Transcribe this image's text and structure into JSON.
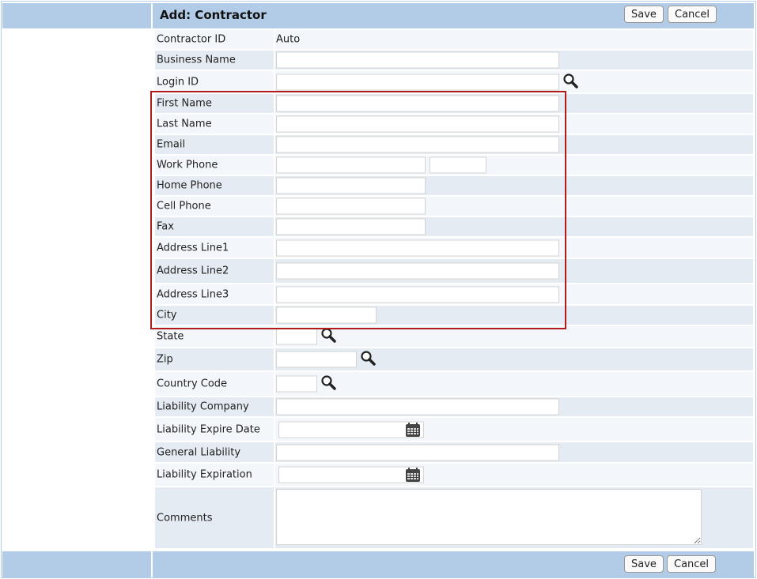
{
  "header": {
    "title": "Add: Contractor",
    "save_label": "Save",
    "cancel_label": "Cancel"
  },
  "footer": {
    "save_label": "Save",
    "cancel_label": "Cancel"
  },
  "fields": [
    {
      "label": "Contractor ID",
      "value": "Auto"
    },
    {
      "label": "Business Name",
      "value": ""
    },
    {
      "label": "Login ID",
      "value": ""
    },
    {
      "label": "First Name",
      "value": ""
    },
    {
      "label": "Last Name",
      "value": ""
    },
    {
      "label": "Email",
      "value": ""
    },
    {
      "label": "Work Phone",
      "value": "",
      "extension": ""
    },
    {
      "label": "Home Phone",
      "value": ""
    },
    {
      "label": "Cell Phone",
      "value": ""
    },
    {
      "label": "Fax",
      "value": ""
    },
    {
      "label": "Address Line1",
      "value": ""
    },
    {
      "label": "Address Line2",
      "value": ""
    },
    {
      "label": "Address Line3",
      "value": ""
    },
    {
      "label": "City",
      "value": ""
    },
    {
      "label": "State",
      "value": ""
    },
    {
      "label": "Zip",
      "value": ""
    },
    {
      "label": "Country Code",
      "value": ""
    },
    {
      "label": "Liability Company",
      "value": ""
    },
    {
      "label": "Liability Expire Date",
      "value": ""
    },
    {
      "label": "General Liability",
      "value": ""
    },
    {
      "label": "Liability Expiration",
      "value": ""
    },
    {
      "label": "Comments",
      "value": ""
    }
  ],
  "icons": {
    "lookup": "magnifier-icon",
    "date": "calendar-icon"
  },
  "colors": {
    "header_bar": "#b2cbe6",
    "highlight_box": "#b01c1c"
  }
}
